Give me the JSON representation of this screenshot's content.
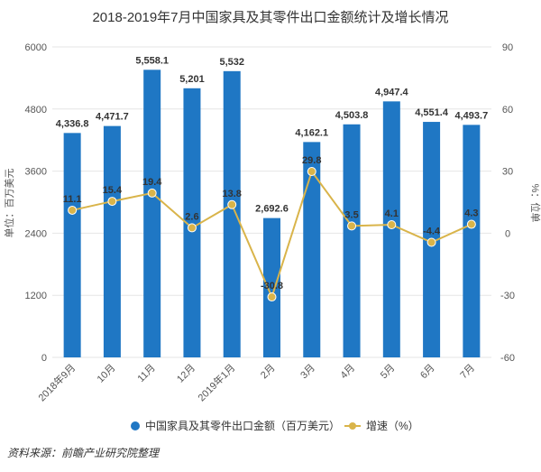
{
  "chart_data": {
    "type": "bar",
    "title": "2018-2019年7月中国家具及其零件出口金额统计及增长情况",
    "categories": [
      "2018年9月",
      "10月",
      "11月",
      "12月",
      "2019年1月",
      "2月",
      "3月",
      "4月",
      "5月",
      "6月",
      "7月"
    ],
    "series": [
      {
        "name": "中国家具及其零件出口金额（百万美元）",
        "type": "bar",
        "axis": "left",
        "color": "#1f77c4",
        "values": [
          4336.8,
          4471.7,
          5558.1,
          5201,
          5532,
          2692.6,
          4162.1,
          4503.8,
          4947.4,
          4551.4,
          4493.7
        ],
        "labels": [
          "4,336.8",
          "4,471.7",
          "5,558.1",
          "5,201",
          "5,532",
          "2,692.6",
          "4,162.1",
          "4,503.8",
          "4,947.4",
          "4,551.4",
          "4,493.7"
        ]
      },
      {
        "name": "增速（%）",
        "type": "line",
        "axis": "right",
        "color": "#d9b44a",
        "values": [
          11.1,
          15.4,
          19.4,
          2.6,
          13.8,
          -30.8,
          29.8,
          3.5,
          4.1,
          -4.4,
          4.3
        ],
        "labels": [
          "11.1",
          "15.4",
          "19.4",
          "2.6",
          "13.8",
          "-30.8",
          "29.8",
          "3.5",
          "4.1",
          "-4.4",
          "4.3"
        ]
      }
    ],
    "ylabel": "单位：百万美元",
    "y2label": "%：位单",
    "ylim": [
      0,
      6000
    ],
    "yticks": [
      "0",
      "1200",
      "2400",
      "3600",
      "4800",
      "6000"
    ],
    "y2lim": [
      -60,
      90
    ],
    "y2ticks": [
      "-60",
      "-30",
      "0",
      "30",
      "60",
      "90"
    ],
    "grid": true,
    "legend_position": "bottom"
  },
  "footer": {
    "source": "资料来源：前瞻产业研究院整理"
  }
}
